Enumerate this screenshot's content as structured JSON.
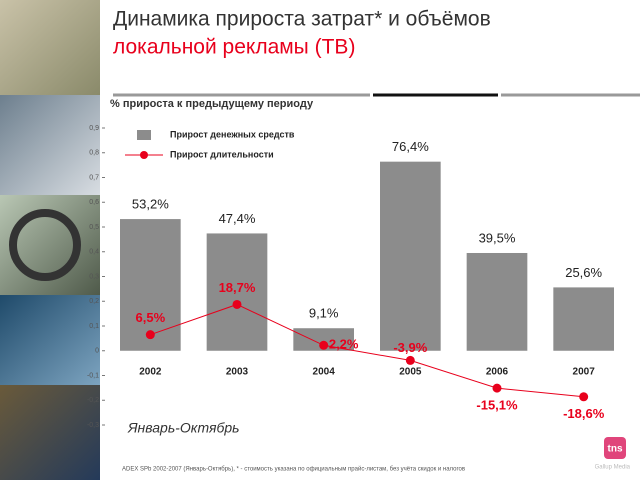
{
  "chart_data": {
    "type": "bar-line",
    "title": "Динамика прироста затрат* и объёмов",
    "title_highlight": "локальной рекламы (ТВ)",
    "subtitle": "% прироста к предыдущему периоду",
    "annotation": "Январь-Октябрь",
    "footnote": "ADEX SPb 2002-2007 (Январь-Октябрь), * - стоимость указана по официальным прайс-листам, без учёта скидок и налогов",
    "logo": "tns",
    "logo_caption": "Gallup Media",
    "categories": [
      "2002",
      "2003",
      "2004",
      "2005",
      "2006",
      "2007"
    ],
    "series": [
      {
        "name": "Прирост денежных средств",
        "type": "bar",
        "color": "#8c8c8c",
        "values": [
          0.532,
          0.474,
          0.091,
          0.764,
          0.395,
          0.256
        ],
        "value_labels": [
          "53,2%",
          "47,4%",
          "9,1%",
          "76,4%",
          "39,5%",
          "25,6%"
        ]
      },
      {
        "name": "Прирост длительности",
        "type": "line",
        "color": "#e8001c",
        "values": [
          0.065,
          0.187,
          0.022,
          -0.039,
          -0.151,
          -0.186
        ],
        "value_labels": [
          "6,5%",
          "18,7%",
          "2,2%",
          "-3,9%",
          "-15,1%",
          "-18,6%"
        ]
      }
    ],
    "ylim": [
      -0.3,
      0.9
    ],
    "yticks": [
      {
        "value": 0.9,
        "label": "0,9"
      },
      {
        "value": 0.8,
        "label": "0,8"
      },
      {
        "value": 0.7,
        "label": "0,7"
      },
      {
        "value": 0.6,
        "label": "0,6"
      },
      {
        "value": 0.5,
        "label": "0,5"
      },
      {
        "value": 0.4,
        "label": "0,4"
      },
      {
        "value": 0.3,
        "label": "0,3"
      },
      {
        "value": 0.2,
        "label": "0,2"
      },
      {
        "value": 0.1,
        "label": "0,1"
      },
      0,
      {
        "value": -0.1,
        "label": "-0,1"
      },
      {
        "value": -0.2,
        "label": "-0,2"
      },
      {
        "value": -0.3,
        "label": "-0,3"
      }
    ]
  }
}
